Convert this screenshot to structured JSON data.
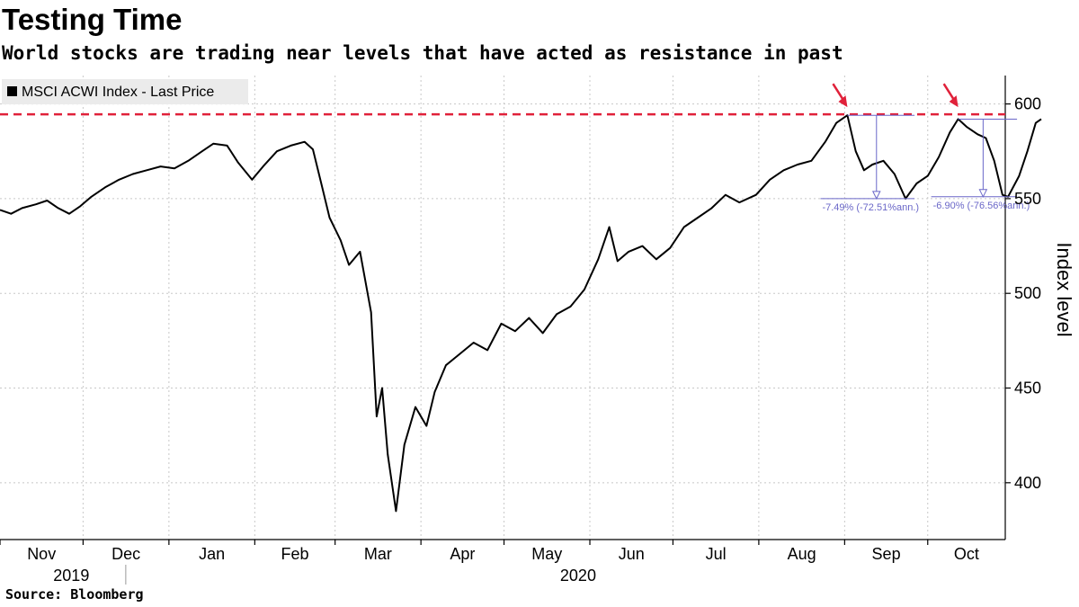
{
  "header": {
    "title": "Testing Time",
    "subtitle": "World stocks are trading near levels that have acted as resistance in past",
    "source": "Source: Bloomberg"
  },
  "colors": {
    "line": "#000000",
    "resistance": "#e0213a",
    "grid": "#c8c8c8",
    "annotation": "#6a67c8",
    "legend_bg": "#ebebeb"
  },
  "chart_data": {
    "type": "line",
    "title": "Testing Time",
    "ylabel": "Index level",
    "xlabel": "",
    "ylim": [
      370,
      615
    ],
    "yticks": [
      400,
      450,
      500,
      550,
      600
    ],
    "x_start": "2019-11-01",
    "x_end": "2020-10-29",
    "months": [
      {
        "label": "Nov",
        "date": "2019-11-01"
      },
      {
        "label": "Dec",
        "date": "2019-12-01"
      },
      {
        "label": "Jan",
        "date": "2020-01-01"
      },
      {
        "label": "Feb",
        "date": "2020-02-01"
      },
      {
        "label": "Mar",
        "date": "2020-03-01"
      },
      {
        "label": "Apr",
        "date": "2020-04-01"
      },
      {
        "label": "May",
        "date": "2020-05-01"
      },
      {
        "label": "Jun",
        "date": "2020-06-01"
      },
      {
        "label": "Jul",
        "date": "2020-07-01"
      },
      {
        "label": "Aug",
        "date": "2020-08-01"
      },
      {
        "label": "Sep",
        "date": "2020-09-01"
      },
      {
        "label": "Oct",
        "date": "2020-10-01"
      }
    ],
    "years": [
      {
        "label": "2019",
        "date": "2019-11-30"
      },
      {
        "label": "2020",
        "date": "2020-05-31"
      }
    ],
    "legend": "MSCI ACWI Index - Last Price",
    "resistance_level": 594.5,
    "series": [
      {
        "name": "MSCI ACWI Index - Last Price",
        "points": [
          [
            "2019-11-01",
            544
          ],
          [
            "2019-11-05",
            542
          ],
          [
            "2019-11-09",
            545
          ],
          [
            "2019-11-14",
            547
          ],
          [
            "2019-11-18",
            549
          ],
          [
            "2019-11-22",
            545
          ],
          [
            "2019-11-26",
            542
          ],
          [
            "2019-11-30",
            546
          ],
          [
            "2019-12-04",
            551
          ],
          [
            "2019-12-09",
            556
          ],
          [
            "2019-12-14",
            560
          ],
          [
            "2019-12-19",
            563
          ],
          [
            "2019-12-24",
            565
          ],
          [
            "2019-12-29",
            567
          ],
          [
            "2020-01-03",
            566
          ],
          [
            "2020-01-08",
            570
          ],
          [
            "2020-01-13",
            575
          ],
          [
            "2020-01-17",
            579
          ],
          [
            "2020-01-22",
            578
          ],
          [
            "2020-01-26",
            569
          ],
          [
            "2020-01-31",
            560
          ],
          [
            "2020-02-04",
            567
          ],
          [
            "2020-02-09",
            575
          ],
          [
            "2020-02-14",
            578
          ],
          [
            "2020-02-19",
            580
          ],
          [
            "2020-02-22",
            576
          ],
          [
            "2020-02-25",
            558
          ],
          [
            "2020-02-28",
            540
          ],
          [
            "2020-03-03",
            528
          ],
          [
            "2020-03-06",
            515
          ],
          [
            "2020-03-10",
            522
          ],
          [
            "2020-03-14",
            490
          ],
          [
            "2020-03-16",
            435
          ],
          [
            "2020-03-18",
            450
          ],
          [
            "2020-03-20",
            415
          ],
          [
            "2020-03-23",
            385
          ],
          [
            "2020-03-26",
            420
          ],
          [
            "2020-03-30",
            440
          ],
          [
            "2020-04-03",
            430
          ],
          [
            "2020-04-06",
            448
          ],
          [
            "2020-04-10",
            462
          ],
          [
            "2020-04-15",
            468
          ],
          [
            "2020-04-20",
            474
          ],
          [
            "2020-04-25",
            470
          ],
          [
            "2020-04-30",
            484
          ],
          [
            "2020-05-05",
            480
          ],
          [
            "2020-05-10",
            487
          ],
          [
            "2020-05-15",
            479
          ],
          [
            "2020-05-20",
            489
          ],
          [
            "2020-05-25",
            493
          ],
          [
            "2020-05-30",
            502
          ],
          [
            "2020-06-04",
            518
          ],
          [
            "2020-06-08",
            535
          ],
          [
            "2020-06-11",
            517
          ],
          [
            "2020-06-15",
            522
          ],
          [
            "2020-06-20",
            525
          ],
          [
            "2020-06-25",
            518
          ],
          [
            "2020-06-30",
            524
          ],
          [
            "2020-07-05",
            535
          ],
          [
            "2020-07-10",
            540
          ],
          [
            "2020-07-15",
            545
          ],
          [
            "2020-07-20",
            552
          ],
          [
            "2020-07-25",
            548
          ],
          [
            "2020-07-31",
            552
          ],
          [
            "2020-08-05",
            560
          ],
          [
            "2020-08-10",
            565
          ],
          [
            "2020-08-15",
            568
          ],
          [
            "2020-08-20",
            570
          ],
          [
            "2020-08-25",
            580
          ],
          [
            "2020-08-29",
            590
          ],
          [
            "2020-09-02",
            594
          ],
          [
            "2020-09-05",
            575
          ],
          [
            "2020-09-08",
            565
          ],
          [
            "2020-09-11",
            568
          ],
          [
            "2020-09-15",
            570
          ],
          [
            "2020-09-19",
            563
          ],
          [
            "2020-09-23",
            550
          ],
          [
            "2020-09-27",
            558
          ],
          [
            "2020-10-01",
            562
          ],
          [
            "2020-10-05",
            572
          ],
          [
            "2020-10-09",
            585
          ],
          [
            "2020-10-12",
            592
          ],
          [
            "2020-10-15",
            588
          ],
          [
            "2020-10-19",
            584
          ],
          [
            "2020-10-22",
            582
          ],
          [
            "2020-10-25",
            570
          ],
          [
            "2020-10-28",
            552
          ],
          [
            "2020-10-30",
            551
          ],
          [
            "2020-11-03",
            562
          ],
          [
            "2020-11-06",
            575
          ],
          [
            "2020-11-09",
            590
          ],
          [
            "2020-11-11",
            592
          ]
        ]
      }
    ],
    "annotations": [
      {
        "label": "-7.49% (-72.51%ann.)",
        "start_date": "2020-09-02",
        "end_date": "2020-09-23",
        "from": 594,
        "to": 550
      },
      {
        "label": "-6.90% (-76.56%ann.)",
        "start_date": "2020-10-12",
        "end_date": "2020-10-30",
        "from": 592,
        "to": 551
      }
    ],
    "arrows": [
      {
        "date": "2020-09-02"
      },
      {
        "date": "2020-10-12"
      }
    ]
  }
}
